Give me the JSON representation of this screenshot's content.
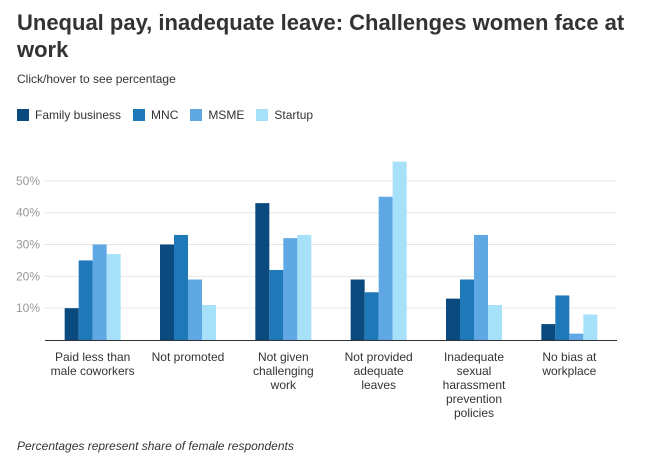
{
  "header": {
    "title": "Unequal pay, inadequate leave: Challenges women face at work",
    "subtitle": "Click/hover to see percentage"
  },
  "footnote": "Percentages represent share of female respondents",
  "chart_data": {
    "type": "bar",
    "title": "Unequal pay, inadequate leave: Challenges women face at work",
    "xlabel": "",
    "ylabel": "",
    "ylim": [
      0,
      60
    ],
    "yticks": [
      10,
      20,
      30,
      40,
      50
    ],
    "ytick_labels": [
      "10%",
      "20%",
      "30%",
      "40%",
      "50%"
    ],
    "grid": true,
    "legend_position": "top-left",
    "categories": [
      [
        "Paid less than",
        "male coworkers"
      ],
      [
        "Not promoted"
      ],
      [
        "Not given",
        "challenging",
        "work"
      ],
      [
        "Not provided",
        "adequate",
        "leaves"
      ],
      [
        "Inadequate",
        "sexual",
        "harassment",
        "prevention",
        "policies"
      ],
      [
        "No bias at",
        "workplace"
      ]
    ],
    "series": [
      {
        "name": "Family business",
        "color": "#0b4a7e",
        "values": [
          10,
          30,
          43,
          19,
          13,
          5
        ]
      },
      {
        "name": "MNC",
        "color": "#1f78b8",
        "values": [
          25,
          33,
          22,
          15,
          19,
          14
        ]
      },
      {
        "name": "MSME",
        "color": "#5fa8e4",
        "values": [
          30,
          19,
          32,
          45,
          33,
          2
        ]
      },
      {
        "name": "Startup",
        "color": "#a6e0f9",
        "values": [
          27,
          11,
          33,
          56,
          11,
          8
        ]
      }
    ]
  }
}
